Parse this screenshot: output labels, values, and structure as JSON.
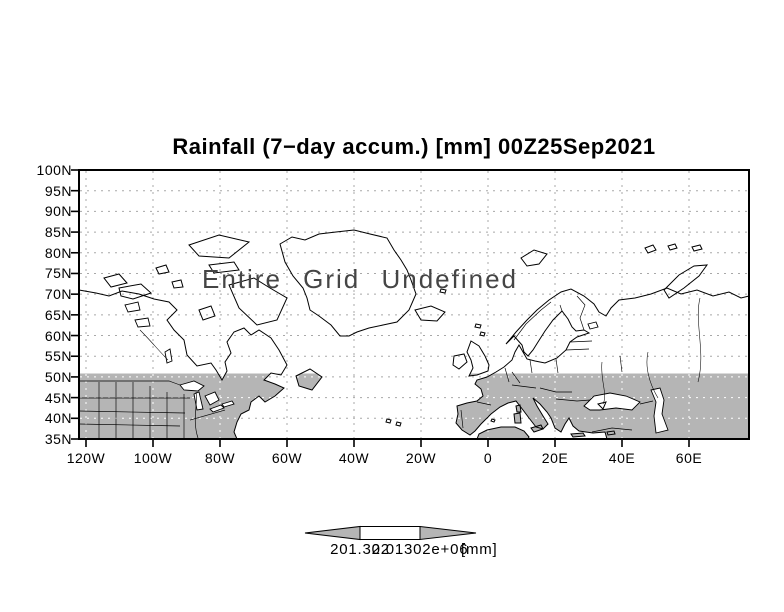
{
  "title": "Rainfall (7−day accum.) [mm] 00Z25Sep2021",
  "status_overlay": "Entire Grid Undefined",
  "axes": {
    "lat_labels": [
      "100N",
      "95N",
      "90N",
      "85N",
      "80N",
      "75N",
      "70N",
      "65N",
      "60N",
      "55N",
      "50N",
      "45N",
      "40N",
      "35N"
    ],
    "lon_labels": [
      "120W",
      "100W",
      "80W",
      "60W",
      "40W",
      "20W",
      "0",
      "20E",
      "40E",
      "60E"
    ]
  },
  "colorbar": {
    "left_value": "201.302",
    "right_value": "2.01302e+06",
    "unit": "[mm]"
  },
  "colors": {
    "land_shade": "#b5b5b5",
    "grid_line": "#a8a8a8",
    "coastline": "#000000",
    "background": "#ffffff"
  },
  "chart_data": {
    "type": "heatmap",
    "title": "Rainfall (7−day accum.) [mm] 00Z25Sep2021",
    "variable": "Rainfall (7-day accum.)",
    "unit": "mm",
    "valid_time": "00Z25Sep2021",
    "status": "Entire Grid Undefined",
    "x_tick_labels": [
      "120W",
      "100W",
      "80W",
      "60W",
      "40W",
      "20W",
      "0",
      "20E",
      "40E",
      "60E"
    ],
    "y_tick_labels": [
      "100N",
      "95N",
      "90N",
      "85N",
      "80N",
      "75N",
      "70N",
      "65N",
      "60N",
      "55N",
      "50N",
      "45N",
      "40N",
      "35N"
    ],
    "grid": true,
    "legend_position": "bottom",
    "colorbar_labels": [
      "201.302",
      "2.01302e+06"
    ],
    "shaded_region_note": "land areas south of ~50N shaded gray; data values undefined"
  }
}
